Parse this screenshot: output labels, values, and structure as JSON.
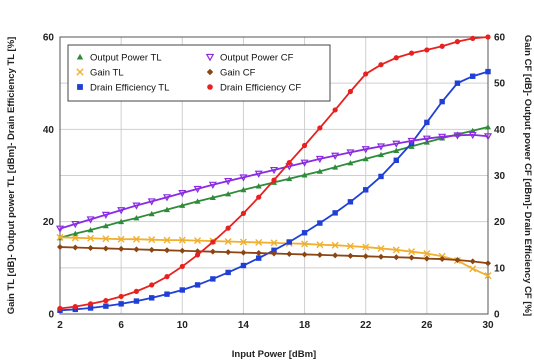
{
  "chart_data": {
    "type": "line",
    "xlabel": "Input Power [dBm]",
    "ylabel_left": "Gain TL [dB]- Output power TL [dBm]- Drain Efficiency TL [%]",
    "ylabel_right": "Gain CF [dB]- Output power CF [dBm]- Drain Efficiency CF [%]",
    "xlim": [
      2,
      30
    ],
    "ylim_left": [
      0,
      60
    ],
    "ylim_right": [
      0,
      60
    ],
    "x_ticks": [
      "2",
      "6",
      "10",
      "14",
      "18",
      "22",
      "26",
      "30"
    ],
    "y_ticks_left": [
      "0",
      "20",
      "40",
      "60"
    ],
    "y_ticks_right": [
      "0",
      "10",
      "20",
      "30",
      "40",
      "50",
      "60"
    ],
    "grid": true,
    "legend_position": "top-left",
    "x": [
      2,
      3,
      4,
      5,
      6,
      7,
      8,
      9,
      10,
      11,
      12,
      13,
      14,
      15,
      16,
      17,
      18,
      19,
      20,
      21,
      22,
      23,
      24,
      25,
      26,
      27,
      28,
      29,
      30
    ],
    "series": [
      {
        "name": "Output Power TL",
        "color": "#2e8b3a",
        "marker": "triangle-up",
        "axis": "left",
        "values": [
          16.5,
          17.4,
          18.2,
          19.1,
          20.0,
          20.8,
          21.7,
          22.6,
          23.5,
          24.4,
          25.2,
          26.0,
          26.9,
          27.7,
          28.5,
          29.3,
          30.1,
          30.9,
          31.8,
          32.7,
          33.6,
          34.5,
          35.4,
          36.3,
          37.2,
          38.1,
          38.9,
          39.7,
          40.5
        ]
      },
      {
        "name": "Gain TL",
        "color": "#f0b030",
        "marker": "x",
        "axis": "left",
        "values": [
          16.6,
          16.5,
          16.4,
          16.3,
          16.2,
          16.2,
          16.1,
          16.0,
          16.0,
          15.9,
          15.8,
          15.7,
          15.6,
          15.5,
          15.4,
          15.3,
          15.2,
          15.0,
          14.9,
          14.7,
          14.5,
          14.2,
          13.9,
          13.5,
          13.1,
          12.5,
          11.6,
          9.8,
          8.3
        ]
      },
      {
        "name": "Drain Efficiency TL",
        "color": "#1f3fd6",
        "marker": "square",
        "axis": "left",
        "values": [
          0.8,
          1.0,
          1.3,
          1.7,
          2.2,
          2.8,
          3.5,
          4.3,
          5.2,
          6.3,
          7.6,
          9.0,
          10.5,
          12.1,
          13.8,
          15.6,
          17.6,
          19.7,
          21.9,
          24.3,
          26.9,
          29.8,
          33.3,
          37.0,
          41.5,
          46.0,
          50.0,
          51.5,
          52.5
        ]
      },
      {
        "name": "Output Power CF",
        "color": "#8a2be2",
        "marker": "triangle-down",
        "axis": "right",
        "values": [
          18.5,
          19.5,
          20.5,
          21.5,
          22.5,
          23.5,
          24.4,
          25.3,
          26.2,
          27.1,
          28.0,
          28.8,
          29.6,
          30.4,
          31.2,
          32.0,
          32.8,
          33.6,
          34.3,
          35.0,
          35.7,
          36.3,
          36.9,
          37.5,
          38.0,
          38.4,
          38.7,
          38.8,
          38.5
        ]
      },
      {
        "name": "Gain CF",
        "color": "#8b4513",
        "marker": "diamond",
        "axis": "right",
        "values": [
          14.5,
          14.4,
          14.3,
          14.2,
          14.1,
          14.0,
          13.9,
          13.8,
          13.7,
          13.6,
          13.5,
          13.4,
          13.3,
          13.2,
          13.1,
          13.0,
          12.9,
          12.8,
          12.7,
          12.6,
          12.5,
          12.4,
          12.3,
          12.2,
          12.0,
          11.9,
          11.7,
          11.4,
          11.0
        ]
      },
      {
        "name": "Drain Efficiency CF",
        "color": "#e8201e",
        "marker": "circle",
        "axis": "right",
        "values": [
          1.2,
          1.6,
          2.2,
          2.9,
          3.8,
          4.9,
          6.3,
          8.1,
          10.3,
          12.8,
          15.6,
          18.6,
          21.8,
          25.3,
          29.0,
          32.8,
          36.5,
          40.3,
          44.2,
          48.2,
          52.0,
          54.0,
          55.5,
          56.5,
          57.2,
          58.0,
          59.0,
          59.7,
          60.0
        ]
      }
    ]
  }
}
